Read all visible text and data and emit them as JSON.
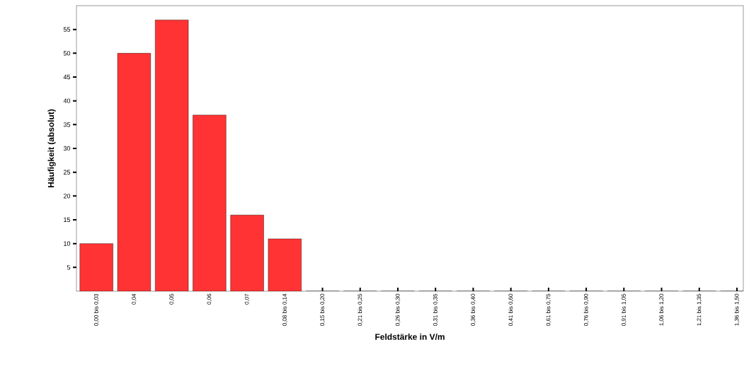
{
  "chart_data": {
    "type": "bar",
    "xlabel": "Feldstärke in V/m",
    "ylabel": "Häufigkeit (absolut)",
    "categories": [
      "0,00 bis 0,03",
      "0,04",
      "0,05",
      "0,06",
      "0,07",
      "0,08 bis 0,14",
      "0,15 bis 0,20",
      "0,21 bis 0,25",
      "0,26 bis 0,30",
      "0,31 bis 0,35",
      "0,36 bis 0,40",
      "0,41 bis 0,60",
      "0,61 bis 0,75",
      "0,76 bis 0,90",
      "0,91 bis 1,05",
      "1,06 bis 1,20",
      "1,21 bis 1,35",
      "1,36 bis 1,50"
    ],
    "values": [
      10,
      50,
      57,
      37,
      16,
      11,
      0,
      0,
      0,
      0,
      0,
      0,
      0,
      0,
      0,
      0,
      0,
      0
    ],
    "color": "#ff3333",
    "ylim": [
      0,
      60
    ],
    "yticks": [
      5,
      10,
      15,
      20,
      25,
      30,
      35,
      40,
      45,
      50,
      55
    ]
  }
}
